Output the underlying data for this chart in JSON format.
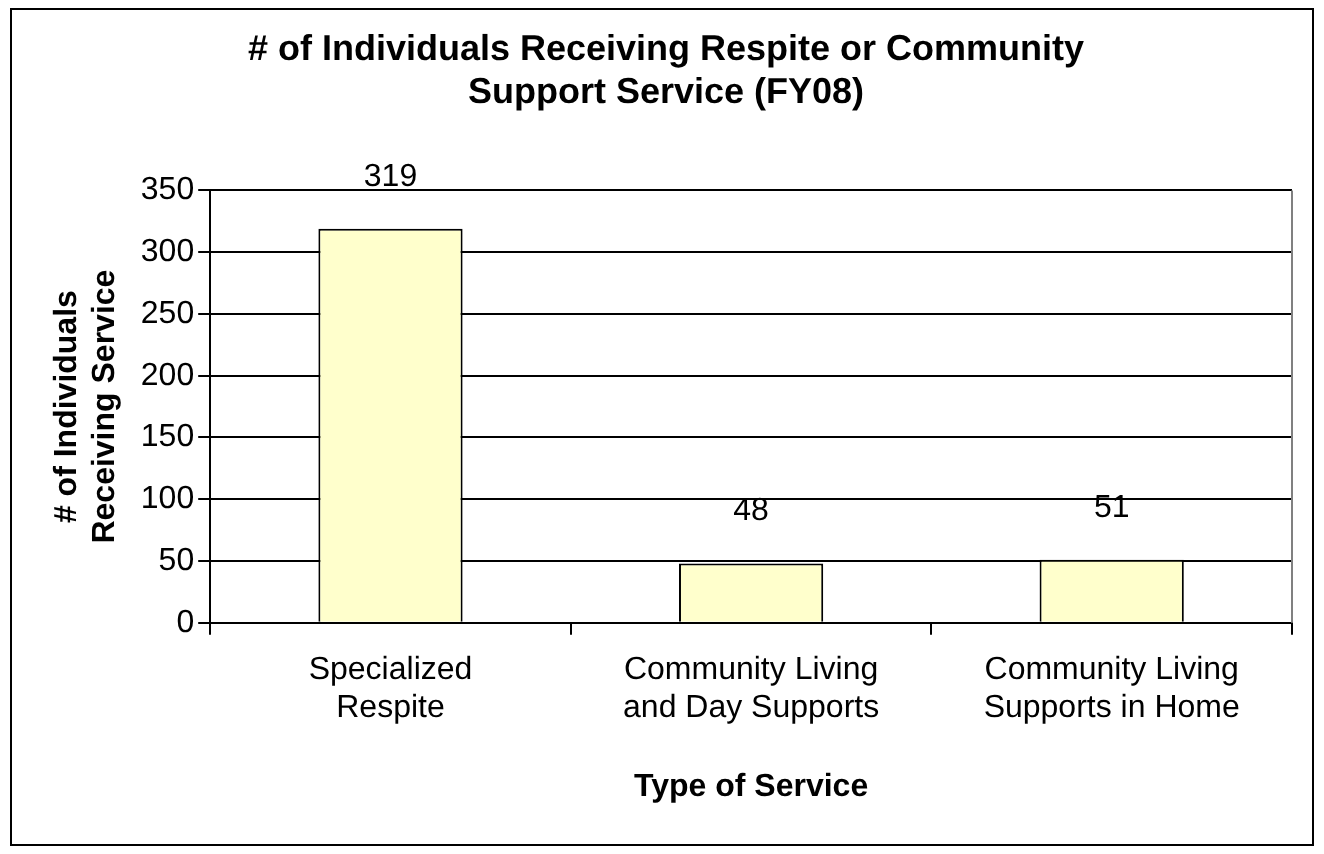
{
  "chart_data": {
    "type": "bar",
    "title": "# of Individuals Receiving Respite or Community Support Service (FY08)",
    "xlabel": "Type of Service",
    "ylabel": "# of Individuals Receiving Service",
    "categories": [
      "Specialized Respite",
      "Community Living and Day Supports",
      "Community Living Supports in Home"
    ],
    "values": [
      319,
      48,
      51
    ],
    "color": "#ffffcc",
    "ylim": [
      0,
      350
    ],
    "yticks": [
      0,
      50,
      100,
      150,
      200,
      250,
      300,
      350
    ],
    "grid": "y",
    "data_labels": true,
    "legend": false
  }
}
